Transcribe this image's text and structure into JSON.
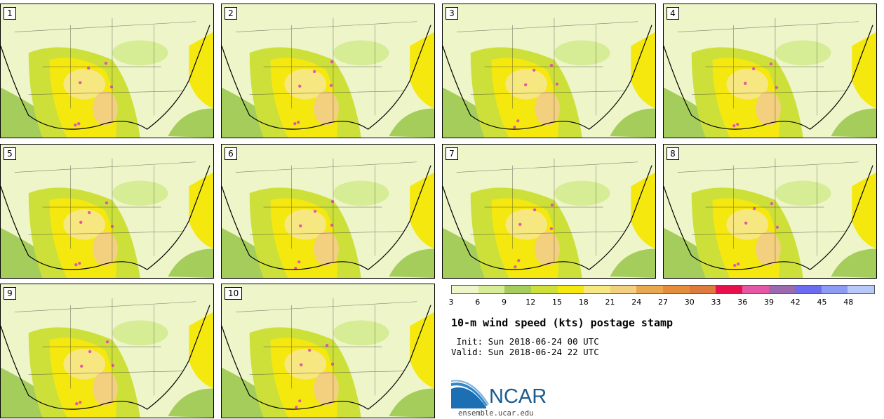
{
  "panels": [
    {
      "label": "1"
    },
    {
      "label": "2"
    },
    {
      "label": "3"
    },
    {
      "label": "4"
    },
    {
      "label": "5"
    },
    {
      "label": "6"
    },
    {
      "label": "7"
    },
    {
      "label": "8"
    },
    {
      "label": "9"
    },
    {
      "label": "10"
    }
  ],
  "legend": {
    "ticks": [
      "3",
      "6",
      "9",
      "12",
      "15",
      "18",
      "21",
      "24",
      "27",
      "30",
      "33",
      "36",
      "39",
      "42",
      "45",
      "48"
    ],
    "colors": [
      "#eef5c8",
      "#d6ec95",
      "#a4cd5c",
      "#cde03a",
      "#f5e80f",
      "#f7e780",
      "#f3cf80",
      "#e9a850",
      "#e48e3c",
      "#de7a3c",
      "#e8104b",
      "#e656a6",
      "#9b6aae",
      "#6c6cf0",
      "#8c9cf4",
      "#b8c8f8"
    ]
  },
  "title": "10-m wind speed (kts) postage stamp",
  "init": " Init: Sun 2018-06-24 00 UTC",
  "valid": "Valid: Sun 2018-06-24 22 UTC",
  "logo": {
    "text": "NCAR",
    "site": "ensemble.ucar.edu",
    "brand_color": "#1d5c8f"
  }
}
